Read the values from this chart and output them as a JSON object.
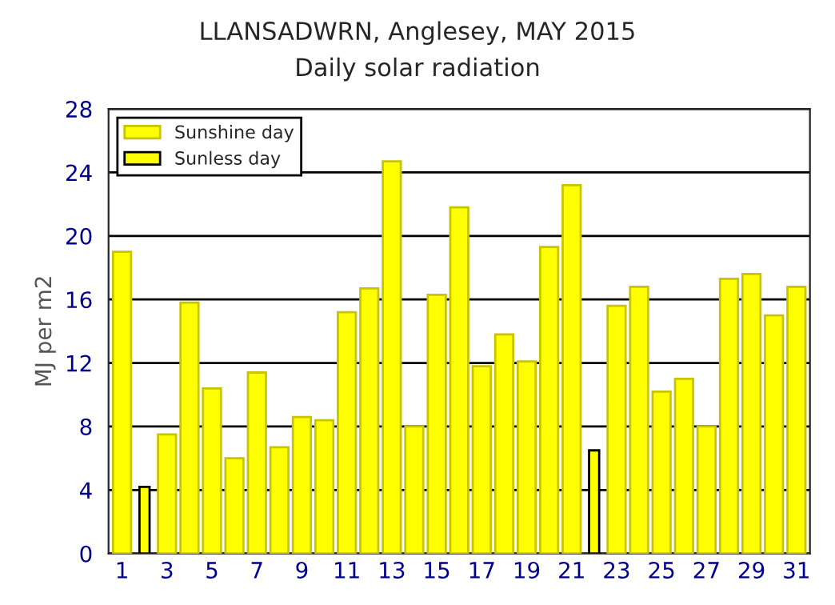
{
  "chart_data": {
    "type": "bar",
    "title": "LLANSADWRN, Anglesey, MAY 2015",
    "subtitle": "Daily solar radiation",
    "ylabel": "MJ per m2",
    "categories": [
      "1",
      null,
      "3",
      null,
      "5",
      null,
      "7",
      null,
      "9",
      null,
      "11",
      null,
      "13",
      null,
      "15",
      null,
      "17",
      null,
      "19",
      null,
      "21",
      null,
      "23",
      null,
      "25",
      null,
      "27",
      null,
      "29",
      null,
      "31"
    ],
    "series": [
      {
        "name": "Sunshine day",
        "color": "#ffff00",
        "values": [
          19.0,
          null,
          7.5,
          15.8,
          10.4,
          6.0,
          11.4,
          6.7,
          8.6,
          8.4,
          15.2,
          16.7,
          24.7,
          8.0,
          16.3,
          21.8,
          11.8,
          13.8,
          12.1,
          19.3,
          23.2,
          null,
          15.6,
          16.8,
          10.2,
          11.0,
          8.0,
          17.3,
          17.6,
          15.0,
          16.8
        ]
      },
      {
        "name": "Sunless day",
        "color": "#ffff00",
        "values": [
          null,
          4.2,
          null,
          null,
          null,
          null,
          null,
          null,
          null,
          null,
          null,
          null,
          null,
          null,
          null,
          null,
          null,
          null,
          null,
          null,
          null,
          6.5,
          null,
          null,
          null,
          null,
          null,
          null,
          null,
          null,
          null
        ]
      }
    ],
    "ylim": [
      0,
      28
    ],
    "yticks": [
      0,
      4,
      8,
      12,
      16,
      20,
      24,
      28
    ],
    "grid": "y",
    "legend": "top left"
  }
}
